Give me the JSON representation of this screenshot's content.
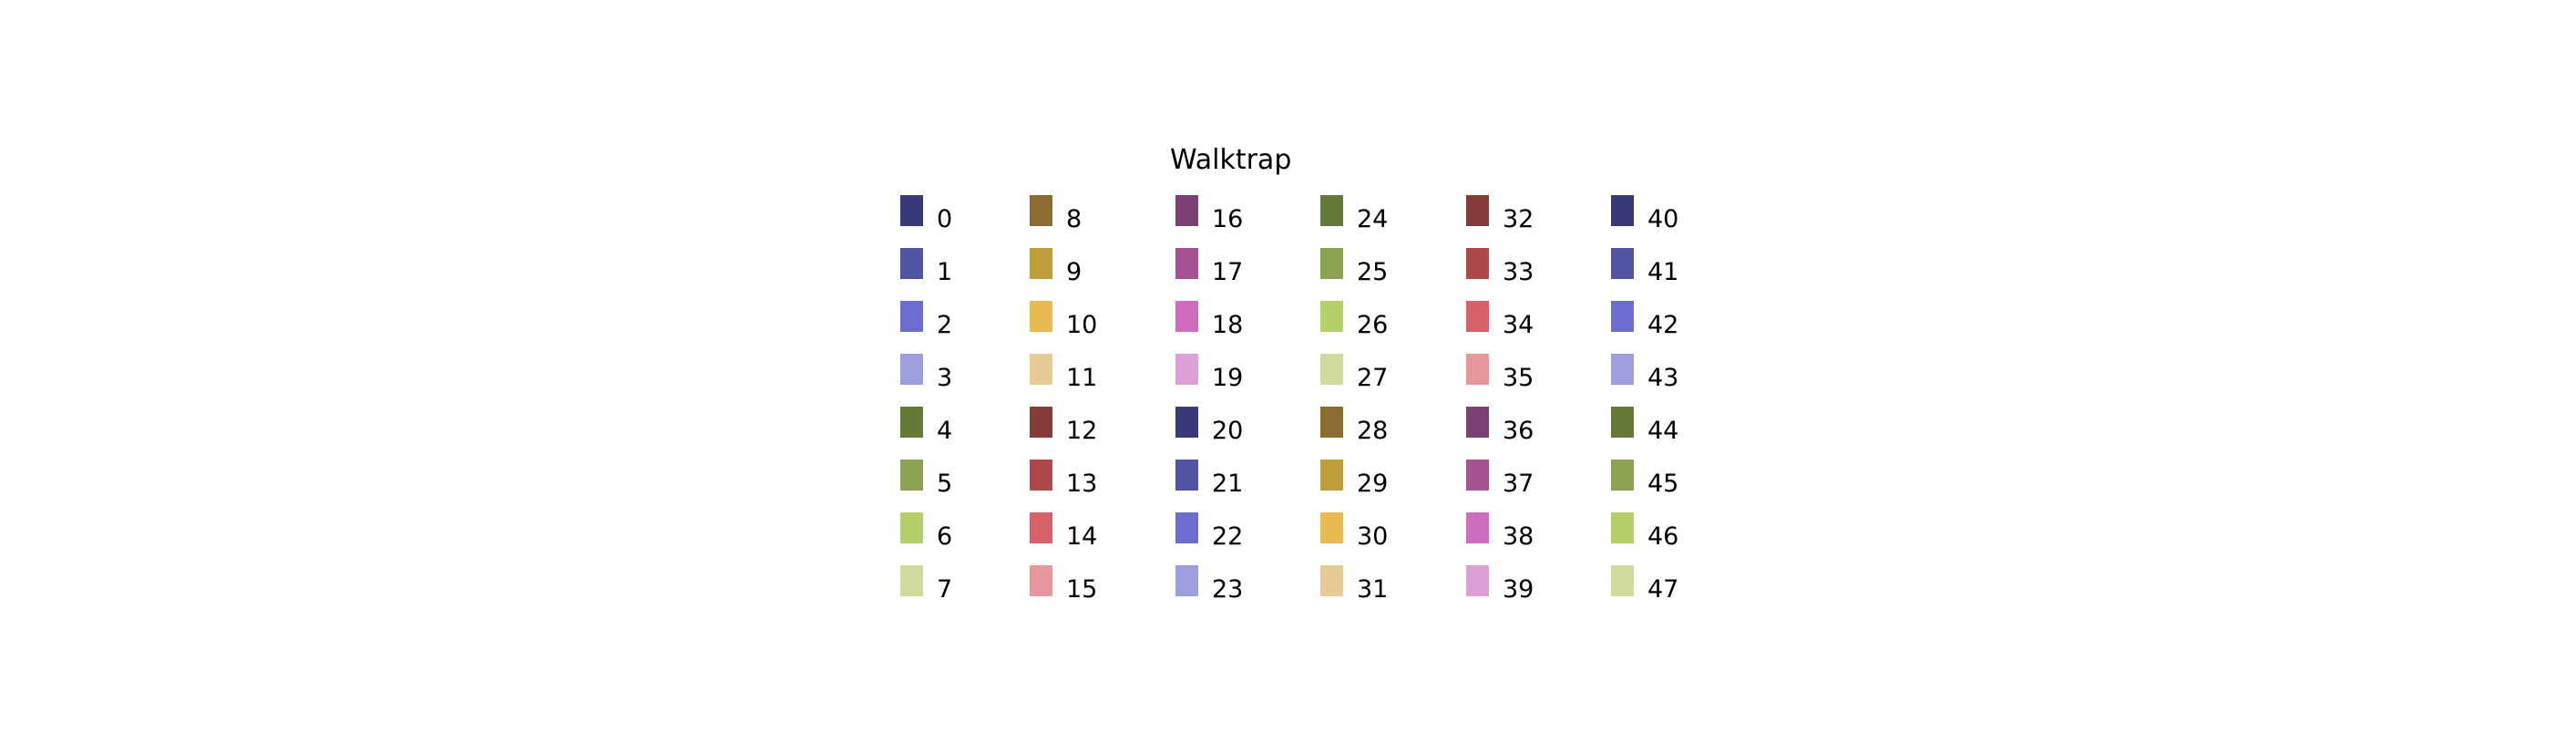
{
  "chart_data": {
    "type": "legend",
    "title": "Walktrap",
    "columns": 6,
    "rows_per_column": 8,
    "entries": [
      {
        "label": "0",
        "color": "#393b79"
      },
      {
        "label": "1",
        "color": "#5254a3"
      },
      {
        "label": "2",
        "color": "#6b6ecf"
      },
      {
        "label": "3",
        "color": "#9c9ede"
      },
      {
        "label": "4",
        "color": "#637939"
      },
      {
        "label": "5",
        "color": "#8ca252"
      },
      {
        "label": "6",
        "color": "#b5cf6b"
      },
      {
        "label": "7",
        "color": "#cedb9c"
      },
      {
        "label": "8",
        "color": "#8c6d31"
      },
      {
        "label": "9",
        "color": "#bd9e39"
      },
      {
        "label": "10",
        "color": "#e7ba52"
      },
      {
        "label": "11",
        "color": "#e7cb94"
      },
      {
        "label": "12",
        "color": "#843c39"
      },
      {
        "label": "13",
        "color": "#ad494a"
      },
      {
        "label": "14",
        "color": "#d6616b"
      },
      {
        "label": "15",
        "color": "#e7969c"
      },
      {
        "label": "16",
        "color": "#7b4173"
      },
      {
        "label": "17",
        "color": "#a55194"
      },
      {
        "label": "18",
        "color": "#ce6dbd"
      },
      {
        "label": "19",
        "color": "#de9ed6"
      },
      {
        "label": "20",
        "color": "#393b79"
      },
      {
        "label": "21",
        "color": "#5254a3"
      },
      {
        "label": "22",
        "color": "#6b6ecf"
      },
      {
        "label": "23",
        "color": "#9c9ede"
      },
      {
        "label": "24",
        "color": "#637939"
      },
      {
        "label": "25",
        "color": "#8ca252"
      },
      {
        "label": "26",
        "color": "#b5cf6b"
      },
      {
        "label": "27",
        "color": "#cedb9c"
      },
      {
        "label": "28",
        "color": "#8c6d31"
      },
      {
        "label": "29",
        "color": "#bd9e39"
      },
      {
        "label": "30",
        "color": "#e7ba52"
      },
      {
        "label": "31",
        "color": "#e7cb94"
      },
      {
        "label": "32",
        "color": "#843c39"
      },
      {
        "label": "33",
        "color": "#ad494a"
      },
      {
        "label": "34",
        "color": "#d6616b"
      },
      {
        "label": "35",
        "color": "#e7969c"
      },
      {
        "label": "36",
        "color": "#7b4173"
      },
      {
        "label": "37",
        "color": "#a55194"
      },
      {
        "label": "38",
        "color": "#ce6dbd"
      },
      {
        "label": "39",
        "color": "#de9ed6"
      },
      {
        "label": "40",
        "color": "#393b79"
      },
      {
        "label": "41",
        "color": "#5254a3"
      },
      {
        "label": "42",
        "color": "#6b6ecf"
      },
      {
        "label": "43",
        "color": "#9c9ede"
      },
      {
        "label": "44",
        "color": "#637939"
      },
      {
        "label": "45",
        "color": "#8ca252"
      },
      {
        "label": "46",
        "color": "#b5cf6b"
      },
      {
        "label": "47",
        "color": "#cedb9c"
      }
    ]
  }
}
